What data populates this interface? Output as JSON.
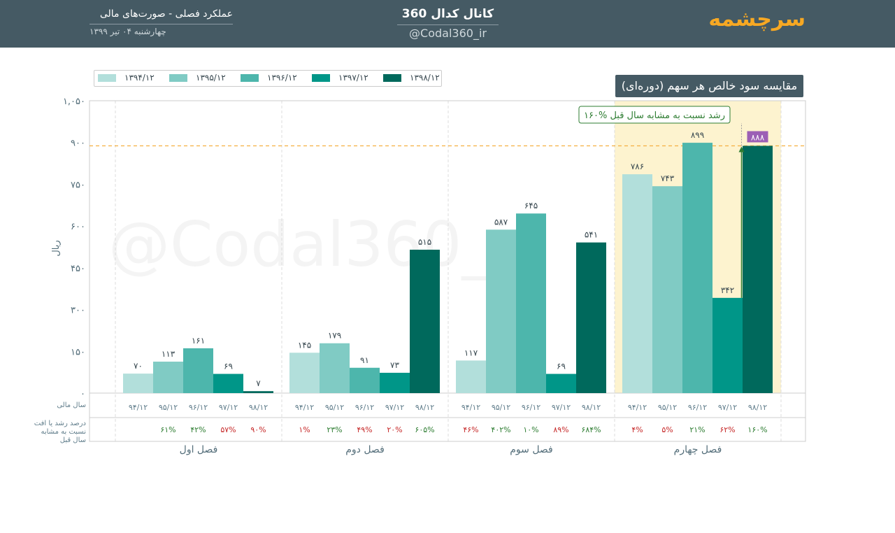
{
  "header": {
    "brand": "سرچشمه",
    "channel_title": "کانال کدال 360",
    "channel_handle": "@Codal360_ir",
    "report_title": "عملکرد فصلی - صورت‌های مالی",
    "report_date": "چهارشنبه ۰۴ تیر ۱۳۹۹"
  },
  "watermark": "@Codal360_ir",
  "colors": {
    "header_bg": "#455a64",
    "brand": "#f7a823",
    "highlight_bg": "#fdf3cf",
    "reference_line": "#f5b041",
    "growth_arrow": "#2e7d32",
    "callout_label_bg": "#9c5fb5",
    "positive_pct": "#2e7d32",
    "negative_pct": "#c62828"
  },
  "chart_data": {
    "type": "bar",
    "title": "مقایسه سود خالص هر سهم (دوره‌ای)",
    "ylabel": "ریال",
    "ylim": [
      0,
      1050
    ],
    "yticks": [
      0,
      150,
      300,
      450,
      600,
      750,
      900,
      1050
    ],
    "ytick_labels": [
      "۰",
      "۱۵۰",
      "۳۰۰",
      "۴۵۰",
      "۶۰۰",
      "۷۵۰",
      "۹۰۰",
      "۱,۰۵۰"
    ],
    "grid": false,
    "legend_position": "top-left",
    "row_labels": {
      "fiscal_year": "سال مالی",
      "growth": [
        "درصد رشد یا افت",
        "نسبت به مشابه",
        "سال قبل"
      ]
    },
    "series": [
      {
        "name": "۱۳۹۴/۱۲",
        "color": "#b2dfdb"
      },
      {
        "name": "۱۳۹۵/۱۲",
        "color": "#80cbc4"
      },
      {
        "name": "۱۳۹۶/۱۲",
        "color": "#4db6ac"
      },
      {
        "name": "۱۳۹۷/۱۲",
        "color": "#009688"
      },
      {
        "name": "۱۳۹۸/۱۲",
        "color": "#00695c"
      }
    ],
    "groups": [
      {
        "name": "فصل اول",
        "year_labels": [
          "۹۴/۱۲",
          "۹۵/۱۲",
          "۹۶/۱۲",
          "۹۷/۱۲",
          "۹۸/۱۲"
        ],
        "values": [
          70,
          113,
          161,
          69,
          7
        ],
        "value_labels": [
          "۷۰",
          "۱۱۳",
          "۱۶۱",
          "۶۹",
          "۷"
        ],
        "growth": [
          "",
          "۶۱%",
          "۴۲%",
          "۵۷%",
          "۹۰%"
        ],
        "growth_sign": [
          0,
          1,
          1,
          -1,
          -1
        ]
      },
      {
        "name": "فصل دوم",
        "year_labels": [
          "۹۴/۱۲",
          "۹۵/۱۲",
          "۹۶/۱۲",
          "۹۷/۱۲",
          "۹۸/۱۲"
        ],
        "values": [
          145,
          179,
          91,
          73,
          515
        ],
        "value_labels": [
          "۱۴۵",
          "۱۷۹",
          "۹۱",
          "۷۳",
          "۵۱۵"
        ],
        "growth": [
          "۱%",
          "۲۳%",
          "۴۹%",
          "۲۰%",
          "۶۰۵%"
        ],
        "growth_sign": [
          -1,
          1,
          -1,
          -1,
          1
        ]
      },
      {
        "name": "فصل سوم",
        "year_labels": [
          "۹۴/۱۲",
          "۹۵/۱۲",
          "۹۶/۱۲",
          "۹۷/۱۲",
          "۹۸/۱۲"
        ],
        "values": [
          117,
          587,
          645,
          69,
          541
        ],
        "value_labels": [
          "۱۱۷",
          "۵۸۷",
          "۶۴۵",
          "۶۹",
          "۵۴۱"
        ],
        "growth": [
          "۴۶%",
          "۴۰۲%",
          "۱۰%",
          "۸۹%",
          "۶۸۴%"
        ],
        "growth_sign": [
          -1,
          1,
          1,
          -1,
          1
        ]
      },
      {
        "name": "فصل چهارم",
        "year_labels": [
          "۹۴/۱۲",
          "۹۵/۱۲",
          "۹۶/۱۲",
          "۹۷/۱۲",
          "۹۸/۱۲"
        ],
        "values": [
          786,
          743,
          899,
          342,
          888
        ],
        "value_labels": [
          "۷۸۶",
          "۷۴۳",
          "۸۹۹",
          "۳۴۲",
          "۸۸۸"
        ],
        "growth": [
          "۴%",
          "۵%",
          "۲۱%",
          "۶۲%",
          "۱۶۰%"
        ],
        "growth_sign": [
          -1,
          -1,
          1,
          -1,
          1
        ]
      }
    ],
    "highlight_group": 3,
    "reference_value": 888,
    "annotation": {
      "text": "۱۶۰% رشد نسبت به مشابه سال قبل",
      "from_value": 342,
      "to_value": 888
    }
  }
}
